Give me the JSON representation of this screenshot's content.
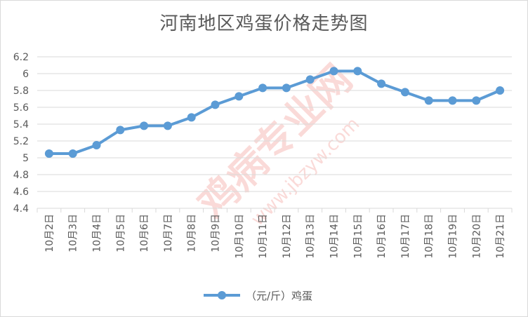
{
  "chart_data": {
    "type": "line",
    "title": "河南地区鸡蛋价格走势图",
    "categories": [
      "10月2日",
      "10月3日",
      "10月4日",
      "10月5日",
      "10月6日",
      "10月7日",
      "10月8日",
      "10月9日",
      "10月10日",
      "10月11日",
      "10月12日",
      "10月13日",
      "10月14日",
      "10月15日",
      "10月16日",
      "10月17日",
      "10月18日",
      "10月19日",
      "10月20日",
      "10月21日"
    ],
    "series": [
      {
        "name": "（元/斤）鸡蛋",
        "values": [
          5.05,
          5.05,
          5.15,
          5.33,
          5.38,
          5.38,
          5.48,
          5.63,
          5.73,
          5.83,
          5.83,
          5.93,
          6.03,
          6.03,
          5.88,
          5.78,
          5.68,
          5.68,
          5.68,
          5.8
        ],
        "color": "#5b9bd5"
      }
    ],
    "ylim": [
      4.4,
      6.2
    ],
    "yticks": [
      "4.4",
      "4.6",
      "4.8",
      "5",
      "5.2",
      "5.4",
      "5.6",
      "5.8",
      "6",
      "6.2"
    ],
    "grid": true,
    "legend_position": "bottom",
    "xlabel": "",
    "ylabel": ""
  },
  "watermark": {
    "text": "鸡病专业网",
    "url": "www.jbzyw.com"
  },
  "colors": {
    "series": "#5b9bd5",
    "grid": "#d9d9d9",
    "text": "#595959",
    "watermark": "#e8392f"
  }
}
